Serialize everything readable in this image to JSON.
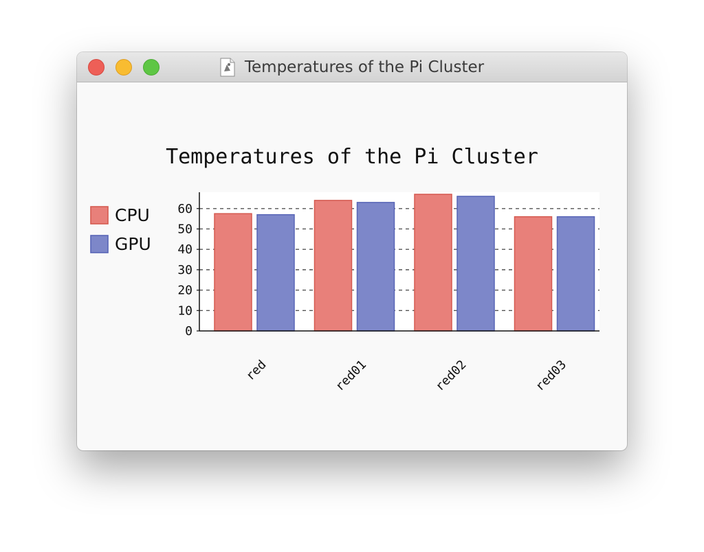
{
  "window": {
    "title": "Temperatures of the Pi Cluster"
  },
  "chart_data": {
    "type": "bar",
    "title": "Temperatures of the Pi Cluster",
    "xlabel": "",
    "ylabel": "",
    "categories": [
      "red",
      "red01",
      "red02",
      "red03"
    ],
    "series": [
      {
        "name": "CPU",
        "values": [
          57.5,
          64,
          67,
          56
        ],
        "color": "#e8807a",
        "stroke": "#d55a50"
      },
      {
        "name": "GPU",
        "values": [
          57,
          63,
          66,
          56
        ],
        "color": "#7d87c9",
        "stroke": "#5865b6"
      }
    ],
    "ylim": [
      0,
      68
    ],
    "yticks": [
      0,
      10,
      20,
      30,
      40,
      50,
      60
    ],
    "grid": true,
    "legend": "left",
    "x_tick_rotation": -45
  }
}
